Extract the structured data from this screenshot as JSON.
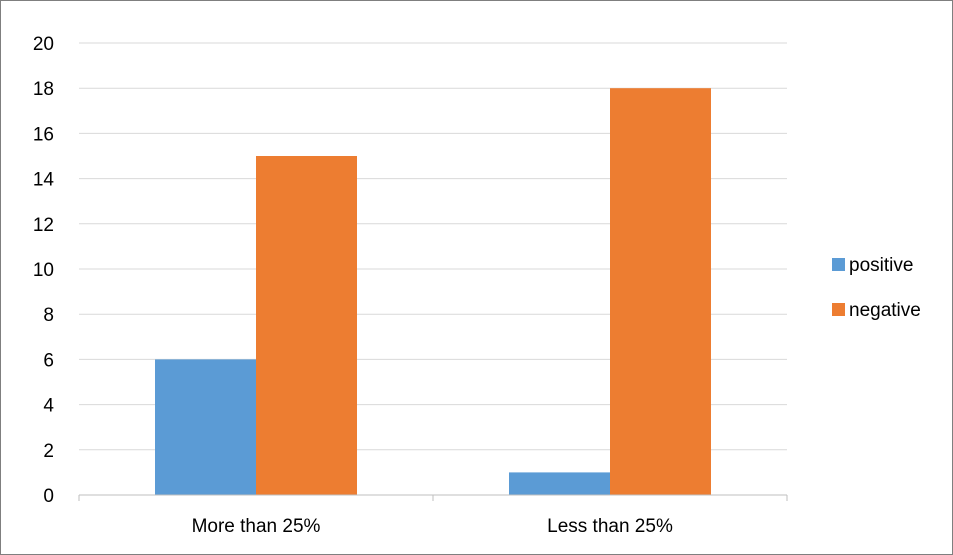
{
  "chart_data": {
    "type": "bar",
    "title": "",
    "xlabel": "",
    "ylabel": "",
    "categories": [
      "More than 25%",
      "Less than 25%"
    ],
    "series": [
      {
        "name": "positive",
        "color": "#5b9bd5",
        "values": [
          6,
          1
        ]
      },
      {
        "name": "negative",
        "color": "#ed7d31",
        "values": [
          15,
          18
        ]
      }
    ],
    "ylim": [
      0,
      20
    ],
    "yticks": [
      0,
      2,
      4,
      6,
      8,
      10,
      12,
      14,
      16,
      18,
      20
    ],
    "grid": true,
    "legend_position": "right",
    "colors": {
      "gridline": "#d9d9d9",
      "axis": "#bfbfbf",
      "frame": "#7f7f7f"
    }
  }
}
